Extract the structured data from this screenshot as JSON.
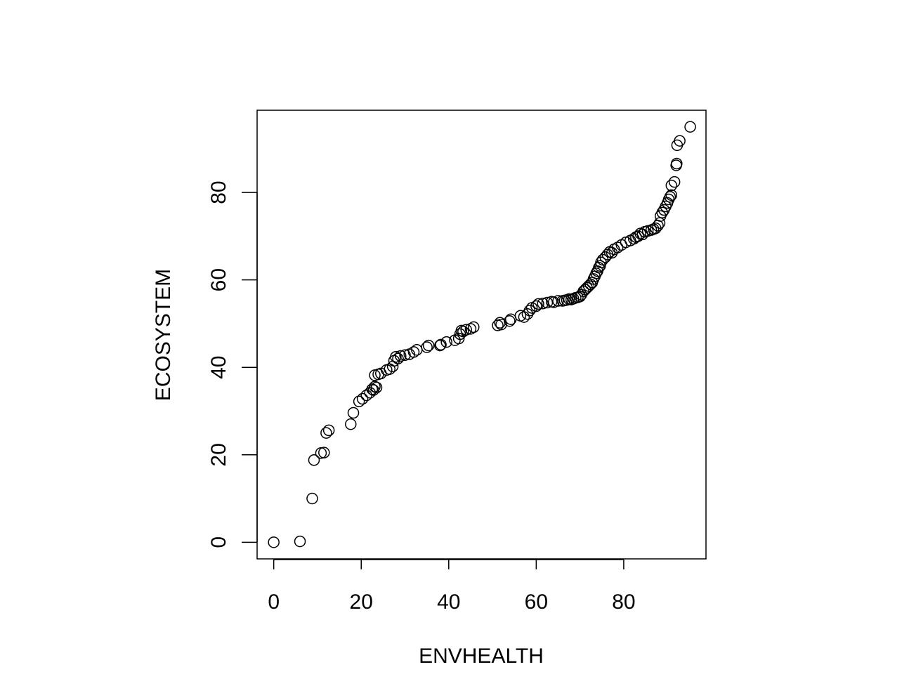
{
  "chart_data": {
    "type": "scatter",
    "title": "",
    "xlabel": "ENVHEALTH",
    "ylabel": "ECOSYSTEM",
    "xlim": [
      -3.8,
      98.8
    ],
    "ylim": [
      -3.8,
      98.8
    ],
    "x_ticks": [
      0,
      20,
      40,
      60,
      80
    ],
    "y_ticks": [
      0,
      20,
      40,
      60,
      80
    ],
    "x_tick_labels": [
      "0",
      "20",
      "40",
      "60",
      "80"
    ],
    "y_tick_labels": [
      "0",
      "20",
      "40",
      "60",
      "80"
    ],
    "grid": false,
    "legend": "none",
    "marker": "open-circle",
    "marker_color": "#000000",
    "points": [
      [
        0,
        0
      ],
      [
        6,
        0.2
      ],
      [
        8.8,
        10
      ],
      [
        9.2,
        18.8
      ],
      [
        10.8,
        20.4
      ],
      [
        11.5,
        20.5
      ],
      [
        12,
        25
      ],
      [
        12.6,
        25.6
      ],
      [
        17.6,
        27
      ],
      [
        18.2,
        29.6
      ],
      [
        19.5,
        32.2
      ],
      [
        20.3,
        32.8
      ],
      [
        21.2,
        33.6
      ],
      [
        22,
        34.2
      ],
      [
        22.5,
        35
      ],
      [
        22.8,
        34.8
      ],
      [
        23.1,
        35.6
      ],
      [
        23.5,
        35.4
      ],
      [
        23.1,
        38.2
      ],
      [
        23.9,
        38.4
      ],
      [
        24.5,
        38.6
      ],
      [
        25.8,
        39.4
      ],
      [
        26.5,
        39.6
      ],
      [
        27.2,
        40.2
      ],
      [
        27.5,
        41.5
      ],
      [
        27.9,
        42.4
      ],
      [
        28.4,
        42
      ],
      [
        29,
        42.6
      ],
      [
        30,
        42.8
      ],
      [
        31,
        43
      ],
      [
        32,
        43.5
      ],
      [
        32.7,
        44
      ],
      [
        35,
        44.6
      ],
      [
        35.4,
        45
      ],
      [
        38,
        45
      ],
      [
        38.2,
        45.2
      ],
      [
        39.5,
        45.8
      ],
      [
        41.4,
        46.2
      ],
      [
        42.3,
        46.6
      ],
      [
        42.6,
        47.6
      ],
      [
        42.9,
        48.4
      ],
      [
        43.3,
        48.2
      ],
      [
        44,
        48.6
      ],
      [
        45,
        48.8
      ],
      [
        45.7,
        49.2
      ],
      [
        51.2,
        49.6
      ],
      [
        51.7,
        50.2
      ],
      [
        52,
        49.8
      ],
      [
        53.9,
        50.6
      ],
      [
        54.2,
        51
      ],
      [
        56.4,
        51.8
      ],
      [
        57.2,
        51.5
      ],
      [
        58,
        52.2
      ],
      [
        58.5,
        53
      ],
      [
        59,
        53.6
      ],
      [
        60,
        54
      ],
      [
        60.5,
        54.5
      ],
      [
        61.5,
        54.6
      ],
      [
        62.5,
        54.8
      ],
      [
        63.5,
        55
      ],
      [
        64,
        54.9
      ],
      [
        65,
        55.2
      ],
      [
        66,
        55.2
      ],
      [
        66.5,
        55.3
      ],
      [
        67,
        55.4
      ],
      [
        67.5,
        55.6
      ],
      [
        68,
        55.5
      ],
      [
        68.5,
        55.7
      ],
      [
        69,
        55.9
      ],
      [
        69.5,
        56
      ],
      [
        70,
        56.2
      ],
      [
        70.3,
        56.6
      ],
      [
        70.8,
        57.4
      ],
      [
        71.2,
        57.8
      ],
      [
        71.6,
        58.2
      ],
      [
        72,
        58.6
      ],
      [
        72.4,
        59
      ],
      [
        72.8,
        59.4
      ],
      [
        73.1,
        60.2
      ],
      [
        73.4,
        60.8
      ],
      [
        73.7,
        61.5
      ],
      [
        74,
        62
      ],
      [
        74.3,
        62.8
      ],
      [
        74.6,
        63.2
      ],
      [
        74.8,
        64
      ],
      [
        75.2,
        64.6
      ],
      [
        75.8,
        65.2
      ],
      [
        76.3,
        65.8
      ],
      [
        76.8,
        66.4
      ],
      [
        77.3,
        66.2
      ],
      [
        77.8,
        67
      ],
      [
        78.6,
        67.4
      ],
      [
        79.5,
        68
      ],
      [
        80.5,
        68.6
      ],
      [
        81.5,
        69
      ],
      [
        82.3,
        69.4
      ],
      [
        82.8,
        69.8
      ],
      [
        83.3,
        70
      ],
      [
        83.8,
        70.6
      ],
      [
        84.3,
        70.4
      ],
      [
        84.8,
        71
      ],
      [
        85.5,
        71.2
      ],
      [
        86.3,
        71.4
      ],
      [
        86.8,
        71.6
      ],
      [
        87.3,
        71.8
      ],
      [
        87.8,
        72.4
      ],
      [
        88.2,
        73
      ],
      [
        88.4,
        74.6
      ],
      [
        88.8,
        75.4
      ],
      [
        89.2,
        76
      ],
      [
        89.6,
        76.8
      ],
      [
        90,
        77.6
      ],
      [
        90.3,
        78.4
      ],
      [
        90.6,
        79
      ],
      [
        90.9,
        79.4
      ],
      [
        90.9,
        81.6
      ],
      [
        91.6,
        82.4
      ],
      [
        92,
        86.2
      ],
      [
        92.1,
        86.6
      ],
      [
        92.2,
        90.8
      ],
      [
        92.8,
        91.8
      ],
      [
        95.2,
        95
      ]
    ]
  }
}
